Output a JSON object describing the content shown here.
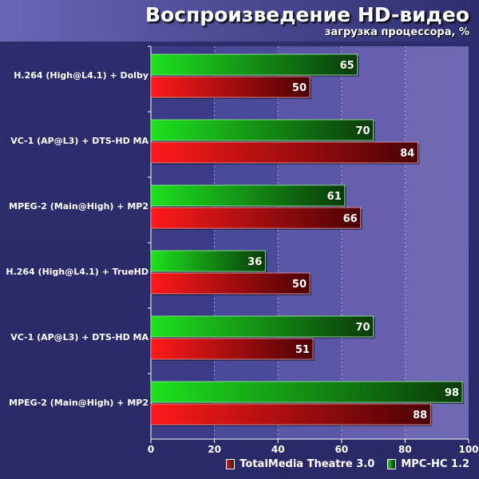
{
  "title": "Воспроизведение HD-видео",
  "subtitle": "загрузка процессора, %",
  "colors": {
    "background": "#2d2d6e",
    "plot_band_1": "#3b3b86",
    "plot_band_2": "#4a4a9a",
    "plot_band_3": "#5a57a6",
    "plot_band_4": "#655fae",
    "plot_band_5": "#6f68b3",
    "totalmedia": "#e8141b",
    "mpchc": "#19d81e",
    "text": "#ffffff"
  },
  "legend": {
    "items": [
      {
        "label": "TotalMedia Theatre 3.0",
        "color": "#e8141b"
      },
      {
        "label": "MPC-HC 1.2",
        "color": "#19d81e"
      }
    ]
  },
  "chart_data": {
    "type": "bar",
    "orientation": "horizontal",
    "title": "Воспроизведение HD-видео",
    "subtitle": "загрузка процессора, %",
    "categories": [
      "H.264 (High@L4.1) + Dolby",
      "VC-1 (AP@L3) + DTS-HD MA",
      "MPEG-2 (Main@High) + MP2",
      "H.264 (High@L4.1) + TrueHD",
      "VC-1 (AP@L3) + DTS-HD MA",
      "MPEG-2 (Main@High) + MP2"
    ],
    "series": [
      {
        "name": "MPC-HC 1.2",
        "color": "#19d81e",
        "values": [
          65,
          70,
          61,
          36,
          70,
          98
        ]
      },
      {
        "name": "TotalMedia Theatre 3.0",
        "color": "#e8141b",
        "values": [
          50,
          84,
          66,
          50,
          51,
          88
        ]
      }
    ],
    "xlim": [
      0,
      100
    ],
    "xticks": [
      "0",
      "20",
      "40",
      "60",
      "80",
      "100"
    ],
    "grid": true,
    "legend_position": "bottom-right",
    "data_labels": true
  }
}
